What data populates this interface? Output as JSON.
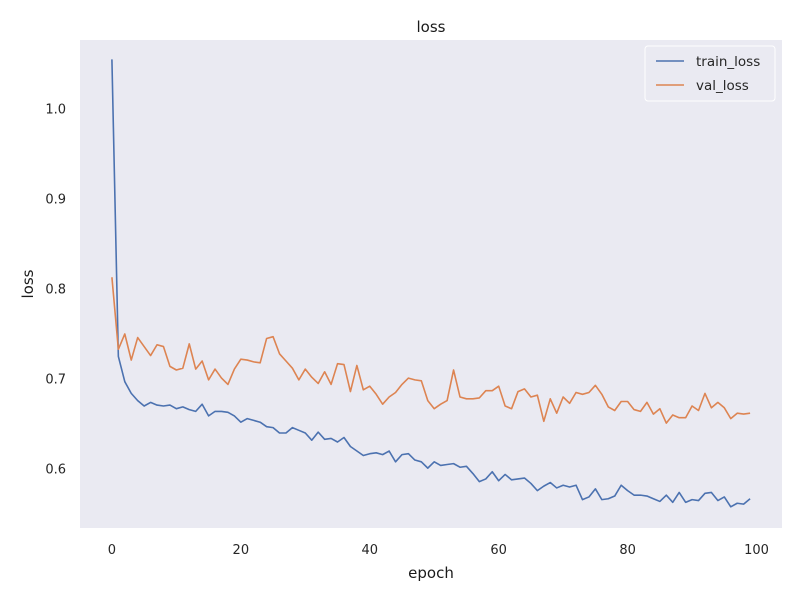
{
  "colors": {
    "background": "#ffffff",
    "plot_area": "#eaeaf2",
    "legend_bg": "#eaeaf2",
    "legend_border": "#ffffff"
  },
  "chart_data": {
    "type": "line",
    "title": "loss",
    "xlabel": "epoch",
    "ylabel": "loss",
    "xlim": [
      -4.95,
      103.95
    ],
    "ylim": [
      0.5345,
      1.0765
    ],
    "xticks": [
      0,
      20,
      40,
      60,
      80,
      100
    ],
    "yticks": [
      0.6,
      0.7,
      0.8,
      0.9,
      1.0
    ],
    "xtick_labels": [
      "0",
      "20",
      "40",
      "60",
      "80",
      "100"
    ],
    "ytick_labels": [
      "0.6",
      "0.7",
      "0.8",
      "0.9",
      "1.0"
    ],
    "grid": false,
    "legend_position": "top-right",
    "x": [
      0,
      1,
      2,
      3,
      4,
      5,
      6,
      7,
      8,
      9,
      10,
      11,
      12,
      13,
      14,
      15,
      16,
      17,
      18,
      19,
      20,
      21,
      22,
      23,
      24,
      25,
      26,
      27,
      28,
      29,
      30,
      31,
      32,
      33,
      34,
      35,
      36,
      37,
      38,
      39,
      40,
      41,
      42,
      43,
      44,
      45,
      46,
      47,
      48,
      49,
      50,
      51,
      52,
      53,
      54,
      55,
      56,
      57,
      58,
      59,
      60,
      61,
      62,
      63,
      64,
      65,
      66,
      67,
      68,
      69,
      70,
      71,
      72,
      73,
      74,
      75,
      76,
      77,
      78,
      79,
      80,
      81,
      82,
      83,
      84,
      85,
      86,
      87,
      88,
      89,
      90,
      91,
      92,
      93,
      94,
      95,
      96,
      97,
      98,
      99
    ],
    "series": [
      {
        "name": "train_loss",
        "color": "#4c72b0",
        "values": [
          1.055,
          0.725,
          0.697,
          0.684,
          0.676,
          0.67,
          0.674,
          0.671,
          0.67,
          0.671,
          0.667,
          0.669,
          0.666,
          0.664,
          0.672,
          0.659,
          0.664,
          0.664,
          0.663,
          0.659,
          0.652,
          0.656,
          0.654,
          0.652,
          0.647,
          0.646,
          0.64,
          0.64,
          0.646,
          0.643,
          0.64,
          0.632,
          0.641,
          0.633,
          0.634,
          0.63,
          0.635,
          0.625,
          0.62,
          0.615,
          0.617,
          0.618,
          0.616,
          0.62,
          0.608,
          0.616,
          0.617,
          0.61,
          0.608,
          0.601,
          0.608,
          0.604,
          0.605,
          0.606,
          0.602,
          0.603,
          0.595,
          0.586,
          0.589,
          0.597,
          0.587,
          0.594,
          0.588,
          0.589,
          0.59,
          0.584,
          0.576,
          0.581,
          0.585,
          0.579,
          0.582,
          0.58,
          0.582,
          0.566,
          0.569,
          0.578,
          0.566,
          0.567,
          0.57,
          0.582,
          0.576,
          0.571,
          0.571,
          0.57,
          0.567,
          0.564,
          0.571,
          0.563,
          0.574,
          0.563,
          0.566,
          0.565,
          0.573,
          0.574,
          0.565,
          0.569,
          0.558,
          0.562,
          0.561,
          0.567
        ]
      },
      {
        "name": "val_loss",
        "color": "#dd8452",
        "values": [
          0.813,
          0.733,
          0.75,
          0.721,
          0.746,
          0.736,
          0.726,
          0.738,
          0.736,
          0.714,
          0.71,
          0.712,
          0.739,
          0.711,
          0.72,
          0.699,
          0.711,
          0.701,
          0.694,
          0.711,
          0.722,
          0.721,
          0.719,
          0.718,
          0.745,
          0.747,
          0.728,
          0.72,
          0.712,
          0.699,
          0.711,
          0.702,
          0.695,
          0.708,
          0.694,
          0.717,
          0.716,
          0.686,
          0.715,
          0.688,
          0.692,
          0.683,
          0.672,
          0.68,
          0.685,
          0.694,
          0.701,
          0.699,
          0.698,
          0.676,
          0.667,
          0.672,
          0.676,
          0.71,
          0.68,
          0.678,
          0.678,
          0.679,
          0.687,
          0.687,
          0.692,
          0.67,
          0.667,
          0.686,
          0.689,
          0.68,
          0.682,
          0.653,
          0.678,
          0.662,
          0.68,
          0.673,
          0.685,
          0.683,
          0.685,
          0.693,
          0.683,
          0.669,
          0.665,
          0.675,
          0.675,
          0.666,
          0.664,
          0.674,
          0.661,
          0.667,
          0.651,
          0.66,
          0.657,
          0.657,
          0.67,
          0.665,
          0.684,
          0.668,
          0.674,
          0.668,
          0.656,
          0.662,
          0.661,
          0.662
        ]
      }
    ]
  }
}
